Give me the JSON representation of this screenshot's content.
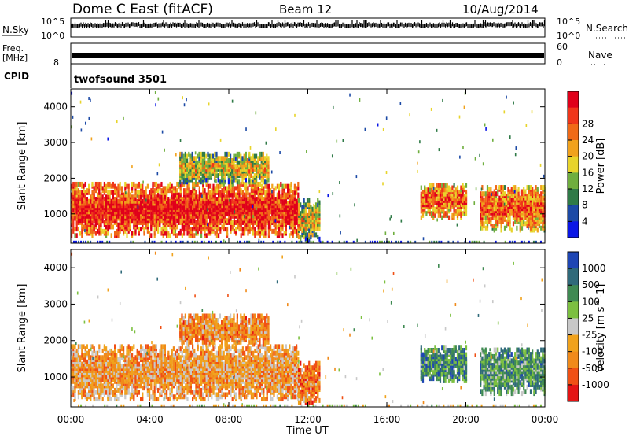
{
  "header": {
    "station": "Dome C East (fitACF)",
    "beam": "Beam 12",
    "date": "10/Aug/2014"
  },
  "aux_panels": {
    "nsky": {
      "label": "N.Sky",
      "right_label": "N.Search",
      "ticks_left": [
        "10^5",
        "10^0"
      ],
      "ticks_right": [
        "10^5",
        "10^0"
      ]
    },
    "freq": {
      "label_line1": "Freq.",
      "label_line2": "[MHz]",
      "right_label": "Nave",
      "ticks_left": [
        "8"
      ],
      "ticks_right": [
        "60",
        "0"
      ]
    },
    "cpid": {
      "label": "CPID",
      "text": "twofsound 3501"
    }
  },
  "colors": {
    "power_scale": [
      "#0a16e6",
      "#1c4aa6",
      "#2f7a47",
      "#6fae3e",
      "#e8d42a",
      "#f1a21c",
      "#f06a17",
      "#f0361a",
      "#e0001a"
    ],
    "velocity_scale": [
      "#1e46b4",
      "#2f6a7a",
      "#3f8a52",
      "#7cc040",
      "#c8c8c8",
      "#f0a21c",
      "#f08a1a",
      "#f05014",
      "#e41414"
    ]
  },
  "chart_data": [
    {
      "type": "heatmap",
      "name": "power",
      "xlabel": "",
      "ylabel": "Slant Range [km]",
      "x_ticks": [
        "00:00",
        "04:00",
        "08:00",
        "12:00",
        "16:00",
        "20:00",
        "00:00"
      ],
      "y_ticks": [
        "1000",
        "2000",
        "3000",
        "4000"
      ],
      "xlim_hours": [
        0,
        24
      ],
      "ylim_km": [
        180,
        4500
      ],
      "colorbar": {
        "label": "Power [dB]",
        "ticks": [
          "4",
          "8",
          "12",
          "16",
          "20",
          "24",
          "28"
        ]
      },
      "regions": [
        {
          "start": 0.0,
          "end": 11.5,
          "range": [
            400,
            1850
          ],
          "level": 0.85
        },
        {
          "start": 5.5,
          "end": 10.0,
          "range": [
            1900,
            2700
          ],
          "level": 0.45
        },
        {
          "start": 11.5,
          "end": 12.6,
          "range": [
            300,
            1400
          ],
          "level": 0.45
        },
        {
          "start": 17.7,
          "end": 20.0,
          "range": [
            900,
            1850
          ],
          "level": 0.7
        },
        {
          "start": 20.7,
          "end": 24.0,
          "range": [
            550,
            1800
          ],
          "level": 0.7
        }
      ]
    },
    {
      "type": "heatmap",
      "name": "velocity",
      "xlabel": "Time UT",
      "ylabel": "Slant Range [km]",
      "x_ticks": [
        "00:00",
        "04:00",
        "08:00",
        "12:00",
        "16:00",
        "20:00",
        "00:00"
      ],
      "y_ticks": [
        "1000",
        "2000",
        "3000",
        "4000"
      ],
      "xlim_hours": [
        0,
        24
      ],
      "ylim_km": [
        180,
        4500
      ],
      "colorbar": {
        "label": "Velocity [m s^-1]",
        "ticks": [
          "1000",
          "500",
          "100",
          "25",
          "-25",
          "-100",
          "-500",
          "-1000"
        ]
      },
      "regions": [
        {
          "start": 0.0,
          "end": 11.5,
          "range": [
            400,
            1850
          ],
          "level": -0.35
        },
        {
          "start": 5.5,
          "end": 10.0,
          "range": [
            1900,
            2700
          ],
          "level": -0.45
        },
        {
          "start": 11.5,
          "end": 12.6,
          "range": [
            300,
            1400
          ],
          "level": -0.5
        },
        {
          "start": 17.7,
          "end": 20.0,
          "range": [
            900,
            1850
          ],
          "level": 0.55
        },
        {
          "start": 20.7,
          "end": 24.0,
          "range": [
            550,
            1800
          ],
          "level": 0.45
        }
      ]
    }
  ]
}
